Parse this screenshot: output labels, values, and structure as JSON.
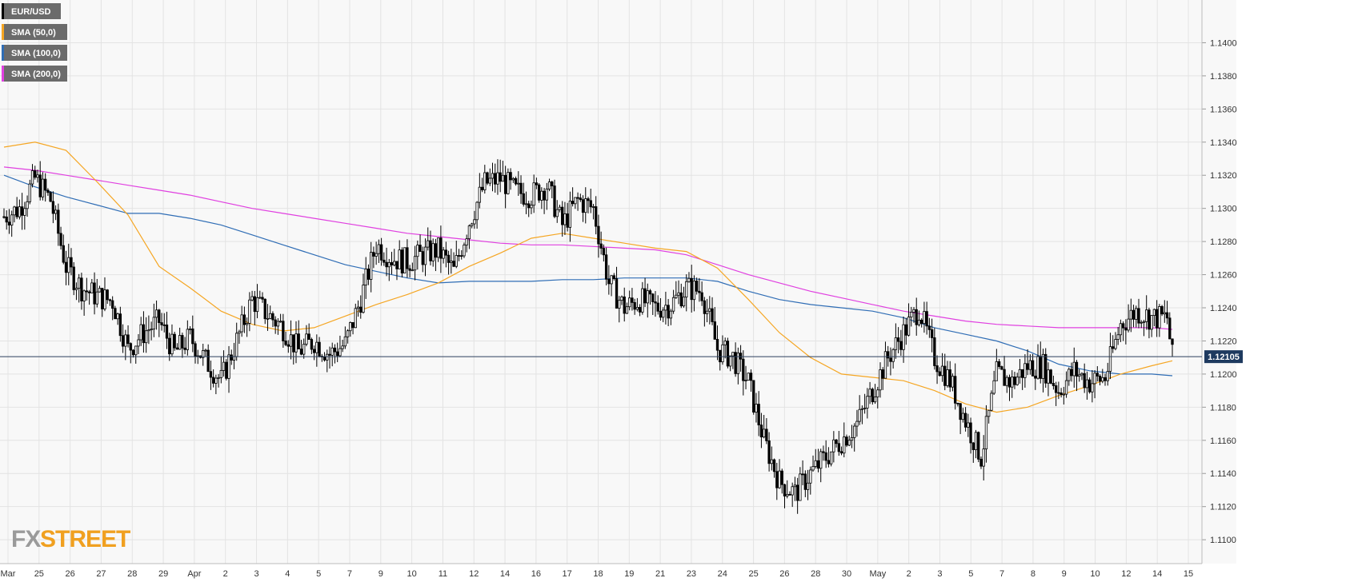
{
  "chart_data": {
    "type": "candlestick",
    "symbol": "EUR/USD",
    "y_range": [
      1.1088,
      1.142
    ],
    "y_ticks": [
      "1.1100",
      "1.1120",
      "1.1140",
      "1.1160",
      "1.1180",
      "1.1200",
      "1.1220",
      "1.1240",
      "1.1260",
      "1.1280",
      "1.1300",
      "1.1320",
      "1.1340",
      "1.1360",
      "1.1380",
      "1.1400"
    ],
    "x_ticks": [
      "Mar",
      "25",
      "26",
      "27",
      "28",
      "29",
      "Apr",
      "2",
      "3",
      "4",
      "5",
      "7",
      "9",
      "10",
      "11",
      "12",
      "14",
      "16",
      "17",
      "18",
      "19",
      "21",
      "23",
      "24",
      "25",
      "26",
      "28",
      "30",
      "May",
      "2",
      "3",
      "5",
      "7",
      "8",
      "9",
      "10",
      "12",
      "14",
      "15"
    ],
    "current_price_label": "1.12105",
    "current_price": 1.12105,
    "legend": [
      {
        "label": "EUR/USD",
        "color": "#000000"
      },
      {
        "label": "SMA (50,0)",
        "color": "#f5a623"
      },
      {
        "label": "SMA (100,0)",
        "color": "#2f6db5"
      },
      {
        "label": "SMA (200,0)",
        "color": "#e040e0"
      }
    ],
    "colors": {
      "up_candle": "#ffffff",
      "down_candle": "#000000",
      "sma50": "#f5a623",
      "sma100": "#2f6db5",
      "sma200": "#e040e0",
      "price_line": "#2b3f5c",
      "price_badge": "#1e3a5f"
    },
    "close_path": [
      [
        0,
        1.1295
      ],
      [
        6,
        1.13
      ],
      [
        12,
        1.1318
      ],
      [
        18,
        1.1305
      ],
      [
        24,
        1.1265
      ],
      [
        30,
        1.1252
      ],
      [
        36,
        1.1247
      ],
      [
        42,
        1.1244
      ],
      [
        48,
        1.1215
      ],
      [
        54,
        1.1225
      ],
      [
        60,
        1.1232
      ],
      [
        66,
        1.1213
      ],
      [
        72,
        1.1222
      ],
      [
        78,
        1.1208
      ],
      [
        84,
        1.1196
      ],
      [
        90,
        1.122
      ],
      [
        96,
        1.1245
      ],
      [
        102,
        1.1236
      ],
      [
        108,
        1.1228
      ],
      [
        114,
        1.1214
      ],
      [
        120,
        1.122
      ],
      [
        126,
        1.1212
      ],
      [
        132,
        1.1218
      ],
      [
        138,
        1.1245
      ],
      [
        144,
        1.1278
      ],
      [
        150,
        1.127
      ],
      [
        156,
        1.1268
      ],
      [
        162,
        1.1272
      ],
      [
        168,
        1.1275
      ],
      [
        174,
        1.1262
      ],
      [
        180,
        1.1292
      ],
      [
        186,
        1.1315
      ],
      [
        192,
        1.1318
      ],
      [
        198,
        1.131
      ],
      [
        204,
        1.1308
      ],
      [
        210,
        1.1314
      ],
      [
        216,
        1.129
      ],
      [
        222,
        1.1305
      ],
      [
        228,
        1.13
      ],
      [
        234,
        1.1255
      ],
      [
        240,
        1.124
      ],
      [
        246,
        1.1245
      ],
      [
        252,
        1.124
      ],
      [
        258,
        1.1242
      ],
      [
        264,
        1.1252
      ],
      [
        270,
        1.125
      ],
      [
        276,
        1.1215
      ],
      [
        282,
        1.121
      ],
      [
        288,
        1.1195
      ],
      [
        294,
        1.116
      ],
      [
        300,
        1.1135
      ],
      [
        306,
        1.1128
      ],
      [
        312,
        1.114
      ],
      [
        318,
        1.115
      ],
      [
        324,
        1.116
      ],
      [
        330,
        1.117
      ],
      [
        336,
        1.119
      ],
      [
        342,
        1.121
      ],
      [
        348,
        1.1225
      ],
      [
        354,
        1.124
      ],
      [
        360,
        1.121
      ],
      [
        366,
        1.1196
      ],
      [
        372,
        1.1172
      ],
      [
        378,
        1.115
      ],
      [
        384,
        1.12
      ],
      [
        390,
        1.1195
      ],
      [
        396,
        1.1205
      ],
      [
        402,
        1.1205
      ],
      [
        408,
        1.119
      ],
      [
        414,
        1.1202
      ],
      [
        420,
        1.1195
      ],
      [
        426,
        1.1198
      ],
      [
        432,
        1.123
      ],
      [
        438,
        1.1238
      ],
      [
        444,
        1.1234
      ],
      [
        450,
        1.1234
      ],
      [
        452,
        1.121
      ]
    ],
    "sma50_path": [
      [
        0,
        1.1337
      ],
      [
        12,
        1.134
      ],
      [
        24,
        1.1335
      ],
      [
        36,
        1.1316
      ],
      [
        48,
        1.1296
      ],
      [
        60,
        1.1265
      ],
      [
        72,
        1.1252
      ],
      [
        84,
        1.1238
      ],
      [
        96,
        1.123
      ],
      [
        108,
        1.1226
      ],
      [
        120,
        1.1228
      ],
      [
        132,
        1.1235
      ],
      [
        144,
        1.1242
      ],
      [
        156,
        1.1248
      ],
      [
        168,
        1.1255
      ],
      [
        180,
        1.1265
      ],
      [
        192,
        1.1273
      ],
      [
        204,
        1.1282
      ],
      [
        216,
        1.1285
      ],
      [
        228,
        1.1282
      ],
      [
        240,
        1.1279
      ],
      [
        252,
        1.1276
      ],
      [
        264,
        1.1274
      ],
      [
        276,
        1.1264
      ],
      [
        288,
        1.1245
      ],
      [
        300,
        1.1225
      ],
      [
        312,
        1.121
      ],
      [
        324,
        1.12
      ],
      [
        336,
        1.1198
      ],
      [
        348,
        1.1196
      ],
      [
        360,
        1.119
      ],
      [
        372,
        1.1182
      ],
      [
        384,
        1.1177
      ],
      [
        396,
        1.118
      ],
      [
        408,
        1.1187
      ],
      [
        420,
        1.1193
      ],
      [
        432,
        1.12
      ],
      [
        444,
        1.1205
      ],
      [
        452,
        1.1208
      ]
    ],
    "sma100_path": [
      [
        0,
        1.132
      ],
      [
        12,
        1.1313
      ],
      [
        24,
        1.1307
      ],
      [
        36,
        1.1302
      ],
      [
        48,
        1.1297
      ],
      [
        60,
        1.1297
      ],
      [
        72,
        1.1294
      ],
      [
        84,
        1.129
      ],
      [
        96,
        1.1284
      ],
      [
        108,
        1.1278
      ],
      [
        120,
        1.1272
      ],
      [
        132,
        1.1266
      ],
      [
        144,
        1.1262
      ],
      [
        156,
        1.1258
      ],
      [
        168,
        1.1255
      ],
      [
        180,
        1.1256
      ],
      [
        192,
        1.1256
      ],
      [
        204,
        1.1256
      ],
      [
        216,
        1.1257
      ],
      [
        228,
        1.1257
      ],
      [
        240,
        1.1258
      ],
      [
        252,
        1.1258
      ],
      [
        264,
        1.1258
      ],
      [
        276,
        1.1256
      ],
      [
        288,
        1.125
      ],
      [
        300,
        1.1245
      ],
      [
        312,
        1.1242
      ],
      [
        324,
        1.124
      ],
      [
        336,
        1.1238
      ],
      [
        348,
        1.1234
      ],
      [
        360,
        1.1228
      ],
      [
        372,
        1.1224
      ],
      [
        384,
        1.122
      ],
      [
        396,
        1.1214
      ],
      [
        408,
        1.1206
      ],
      [
        420,
        1.1202
      ],
      [
        432,
        1.12
      ],
      [
        444,
        1.12
      ],
      [
        452,
        1.1199
      ]
    ],
    "sma200_path": [
      [
        0,
        1.1325
      ],
      [
        12,
        1.1323
      ],
      [
        24,
        1.132
      ],
      [
        36,
        1.1317
      ],
      [
        48,
        1.1314
      ],
      [
        60,
        1.1311
      ],
      [
        72,
        1.1308
      ],
      [
        84,
        1.1304
      ],
      [
        96,
        1.13
      ],
      [
        108,
        1.1297
      ],
      [
        120,
        1.1294
      ],
      [
        132,
        1.1291
      ],
      [
        144,
        1.1288
      ],
      [
        156,
        1.1285
      ],
      [
        168,
        1.1283
      ],
      [
        180,
        1.1281
      ],
      [
        192,
        1.1279
      ],
      [
        204,
        1.1278
      ],
      [
        216,
        1.1278
      ],
      [
        228,
        1.1277
      ],
      [
        240,
        1.1276
      ],
      [
        252,
        1.1275
      ],
      [
        264,
        1.1272
      ],
      [
        276,
        1.1266
      ],
      [
        288,
        1.126
      ],
      [
        300,
        1.1255
      ],
      [
        312,
        1.125
      ],
      [
        324,
        1.1246
      ],
      [
        336,
        1.1242
      ],
      [
        348,
        1.1238
      ],
      [
        360,
        1.1235
      ],
      [
        372,
        1.1232
      ],
      [
        384,
        1.123
      ],
      [
        396,
        1.1229
      ],
      [
        408,
        1.1228
      ],
      [
        420,
        1.1228
      ],
      [
        432,
        1.1228
      ],
      [
        444,
        1.1228
      ],
      [
        452,
        1.1227
      ]
    ]
  },
  "branding": {
    "logo_fx": "FX",
    "logo_street": "STREET"
  }
}
